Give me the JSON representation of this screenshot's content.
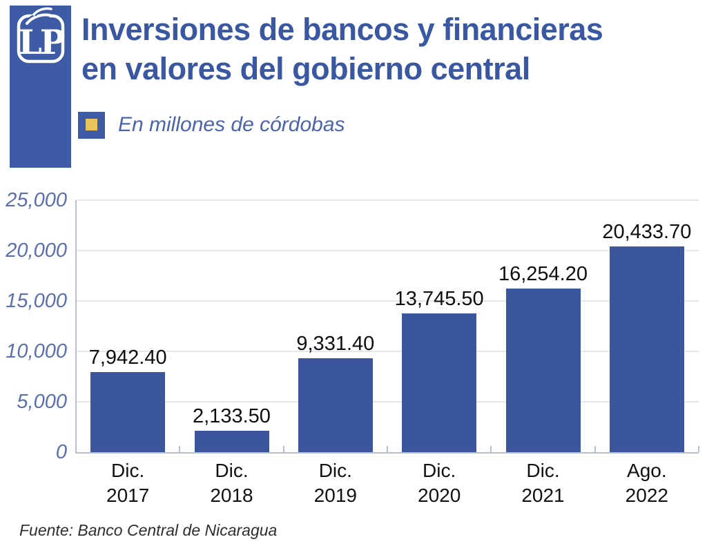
{
  "header": {
    "logo_text": "LP",
    "title_line1": "Inversiones de bancos y financieras",
    "title_line2": "en valores del gobierno central",
    "subtitle": "En millones de córdobas"
  },
  "source": "Fuente: Banco Central de Nicaragua",
  "colors": {
    "brand_blue": "#3E5BA6",
    "bar_blue": "#3B569D",
    "title_blue": "#3A57A2",
    "subtitle_blue": "#4A63AC",
    "ytick_blue": "#5B6FAE",
    "accent_yellow": "#E9C45C",
    "gridline": "#E2E6EF",
    "axis": "#B7C0D2",
    "label_black": "#0D0D0D"
  },
  "chart_data": {
    "type": "bar",
    "title": "Inversiones de bancos y financieras en valores del gobierno central",
    "subtitle": "En millones de córdobas",
    "source": "Fuente: Banco Central de Nicaragua",
    "categories": [
      "Dic. 2017",
      "Dic. 2018",
      "Dic. 2019",
      "Dic. 2020",
      "Dic. 2021",
      "Ago. 2022"
    ],
    "category_lines": [
      [
        "Dic.",
        "2017"
      ],
      [
        "Dic.",
        "2018"
      ],
      [
        "Dic.",
        "2019"
      ],
      [
        "Dic.",
        "2020"
      ],
      [
        "Dic.",
        "2021"
      ],
      [
        "Ago.",
        "2022"
      ]
    ],
    "values": [
      7942.4,
      2133.5,
      9331.4,
      13745.5,
      16254.2,
      20433.7
    ],
    "value_labels": [
      "7,942.40",
      "2,133.50",
      "9,331.40",
      "13,745.50",
      "16,254.20",
      "20,433.70"
    ],
    "xlabel": "",
    "ylabel": "",
    "ylim": [
      0,
      25000
    ],
    "grid_step": 5000,
    "y_ticks": [
      "0",
      "5,000",
      "10,000",
      "15,000",
      "20,000",
      "25,000"
    ],
    "grid": true,
    "legend_position": "none",
    "bar_color": "#3B569D"
  }
}
